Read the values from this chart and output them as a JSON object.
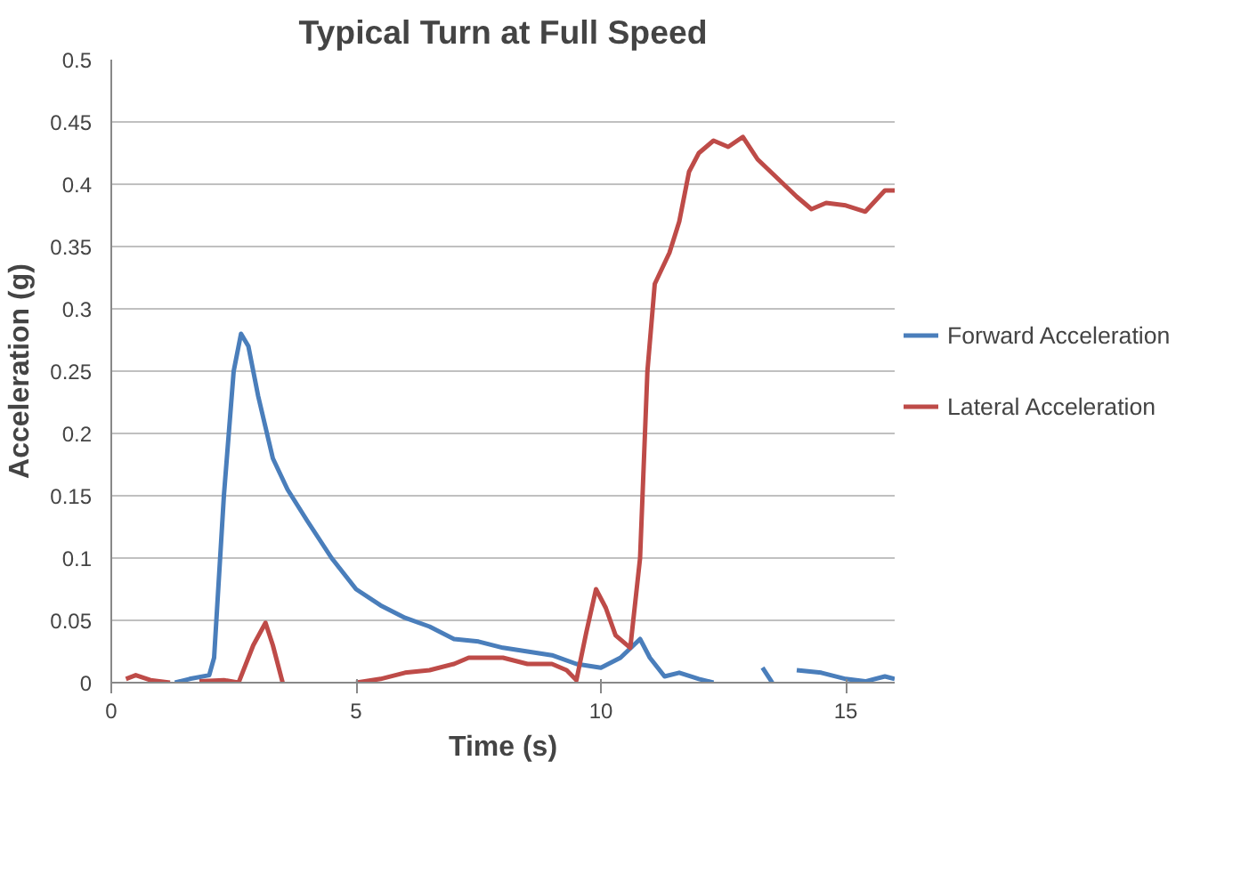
{
  "chart_data": {
    "type": "line",
    "title": "Typical Turn at Full Speed",
    "xlabel": "Time (s)",
    "ylabel": "Acceleration (g)",
    "xlim": [
      0,
      16
    ],
    "xticks": [
      0,
      5,
      10,
      15
    ],
    "ylim": [
      0,
      0.5
    ],
    "yticks": [
      0,
      0.05,
      0.1,
      0.15,
      0.2,
      0.25,
      0.3,
      0.35,
      0.4,
      0.45,
      0.5
    ],
    "grid": "y",
    "legend": "right",
    "marker": "none",
    "line_style": "solid",
    "series": [
      {
        "name": "Forward Acceleration",
        "color": "#4a7ebb",
        "x": [
          1.3,
          1.6,
          2.0,
          2.1,
          2.3,
          2.5,
          2.65,
          2.8,
          3.0,
          3.3,
          3.6,
          4.0,
          4.5,
          5.0,
          5.5,
          6.0,
          6.5,
          7.0,
          7.5,
          8.0,
          8.5,
          9.0,
          9.5,
          10.0,
          10.4,
          10.8,
          11.0,
          11.3,
          11.6,
          12.0,
          12.3,
          12.8,
          13.3,
          13.5,
          13.8,
          14.0,
          14.5,
          15.0,
          15.4,
          15.8,
          16.0
        ],
        "values": [
          0,
          0.003,
          0.006,
          0.02,
          0.15,
          0.25,
          0.28,
          0.27,
          0.23,
          0.18,
          0.155,
          0.13,
          0.1,
          0.075,
          0.062,
          0.052,
          0.045,
          0.035,
          0.033,
          0.028,
          0.025,
          0.022,
          0.015,
          0.012,
          0.02,
          0.035,
          0.02,
          0.005,
          0.008,
          0.003,
          0,
          null,
          0.012,
          0,
          null,
          0.01,
          0.008,
          0.003,
          0.001,
          0.005,
          0.003
        ]
      },
      {
        "name": "Lateral Acceleration",
        "color": "#be4b48",
        "x": [
          0.3,
          0.5,
          0.8,
          1.2,
          1.5,
          1.8,
          2.3,
          2.6,
          2.9,
          3.15,
          3.3,
          3.5,
          4.2,
          5.0,
          5.5,
          6.0,
          6.5,
          7.0,
          7.3,
          8.0,
          8.5,
          9.0,
          9.3,
          9.5,
          9.7,
          9.9,
          10.1,
          10.3,
          10.6,
          10.8,
          10.95,
          11.1,
          11.4,
          11.6,
          11.8,
          12.0,
          12.3,
          12.6,
          12.9,
          13.2,
          13.6,
          14.0,
          14.3,
          14.6,
          15.0,
          15.4,
          15.8,
          16.0
        ],
        "values": [
          0.003,
          0.006,
          0.002,
          0,
          null,
          0.001,
          0.002,
          0,
          0.03,
          0.048,
          0.03,
          0,
          null,
          0,
          0.003,
          0.008,
          0.01,
          0.015,
          0.02,
          0.02,
          0.015,
          0.015,
          0.01,
          0.002,
          0.04,
          0.075,
          0.06,
          0.038,
          0.028,
          0.1,
          0.25,
          0.32,
          0.345,
          0.37,
          0.41,
          0.425,
          0.435,
          0.43,
          0.438,
          0.42,
          0.405,
          0.39,
          0.38,
          0.385,
          0.383,
          0.378,
          0.395,
          0.395
        ]
      }
    ]
  }
}
